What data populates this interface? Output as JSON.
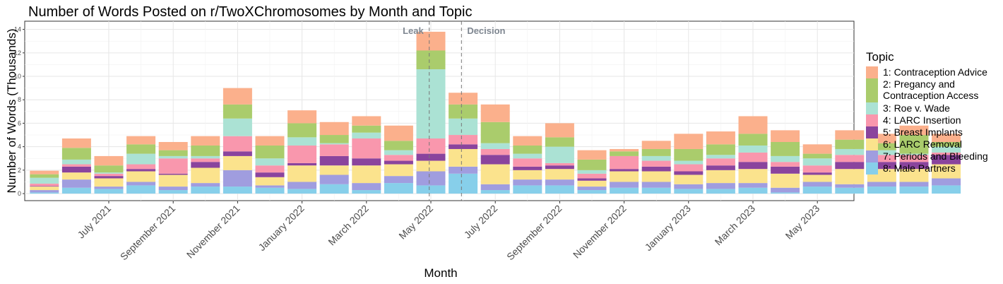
{
  "chart_data": {
    "type": "bar",
    "stacked": true,
    "title": "Number of Words Posted on r/TwoXChromosomes by Month and Topic",
    "xlabel": "Month",
    "ylabel": "Number of Words (Thousands)",
    "ylim": [
      -0.6,
      14.7
    ],
    "yticks": [
      0,
      2,
      4,
      6,
      8,
      10,
      12,
      14
    ],
    "grid": true,
    "legend_position": "right",
    "legend_title": "Topic",
    "categories": [
      "2021-05",
      "2021-06",
      "2021-07",
      "2021-08",
      "2021-09",
      "2021-10",
      "2021-11",
      "2021-12",
      "2022-01",
      "2022-02",
      "2022-03",
      "2022-04",
      "2022-05",
      "2022-06",
      "2022-07",
      "2022-08",
      "2022-09",
      "2022-10",
      "2022-11",
      "2022-12",
      "2023-01",
      "2023-02",
      "2023-03",
      "2023-04",
      "2023-05",
      "2023-06",
      "2023-07",
      "2023-08",
      "2023-09"
    ],
    "x_tick_labels": [
      {
        "index": 2,
        "label": "July 2021"
      },
      {
        "index": 4,
        "label": "September 2021"
      },
      {
        "index": 6,
        "label": "November 2021"
      },
      {
        "index": 8,
        "label": "January 2022"
      },
      {
        "index": 10,
        "label": "March 2022"
      },
      {
        "index": 12,
        "label": "May 2022"
      },
      {
        "index": 14,
        "label": "July 2022"
      },
      {
        "index": 16,
        "label": "September 2022"
      },
      {
        "index": 18,
        "label": "November 2022"
      },
      {
        "index": 20,
        "label": "January 2023"
      },
      {
        "index": 22,
        "label": "March 2023"
      },
      {
        "index": 24,
        "label": "May 2023"
      }
    ],
    "vlines": [
      {
        "x_position": 12.45,
        "label": "Leak"
      },
      {
        "x_position": 13.45,
        "label": "Decision"
      }
    ],
    "series": [
      {
        "name": "8: Male Partners",
        "color": "#87cfea",
        "values": [
          0.1,
          0.5,
          0.4,
          0.7,
          0.3,
          0.6,
          0.6,
          0.5,
          0.4,
          0.8,
          0.3,
          0.9,
          0.7,
          1.7,
          0.3,
          0.7,
          0.7,
          0.3,
          0.5,
          0.5,
          0.4,
          0.4,
          0.5,
          0.1,
          0.6,
          0.5,
          0.6,
          0.6,
          0.7
        ]
      },
      {
        "name": "7: Periods and Bleeding",
        "color": "#a09ddf",
        "values": [
          0.2,
          0.7,
          0.2,
          0.3,
          0.3,
          0.3,
          1.4,
          0.2,
          0.6,
          0.8,
          0.6,
          0.6,
          1.2,
          0.6,
          0.5,
          0.5,
          0.5,
          0.3,
          0.5,
          0.5,
          0.4,
          0.5,
          0.4,
          0.4,
          0.4,
          0.3,
          0.4,
          0.4,
          0.6
        ]
      },
      {
        "name": "6: LARC Removal",
        "color": "#fbe38d",
        "values": [
          0.3,
          0.6,
          0.7,
          0.9,
          1.0,
          1.3,
          1.2,
          0.7,
          1.4,
          0.8,
          1.5,
          1.0,
          0.9,
          1.5,
          1.7,
          0.8,
          0.9,
          0.5,
          0.9,
          0.9,
          0.8,
          1.1,
          1.2,
          1.2,
          0.6,
          1.3,
          1.1,
          1.1,
          1.2
        ]
      },
      {
        "name": "5: Breast Implants",
        "color": "#8a449d",
        "values": [
          0.05,
          0.5,
          0.2,
          0.2,
          0.1,
          0.5,
          0.4,
          0.4,
          0.2,
          0.8,
          0.6,
          0.3,
          0.6,
          0.4,
          0.8,
          0.3,
          0.3,
          0.2,
          0.2,
          0.4,
          0.3,
          0.4,
          0.6,
          0.6,
          0.2,
          0.6,
          0.6,
          0.6,
          0.8
        ]
      },
      {
        "name": "4: LARC Insertion",
        "color": "#f997ad",
        "values": [
          0.2,
          0.2,
          0.2,
          0.4,
          1.3,
          0.3,
          1.3,
          0.6,
          1.5,
          1.0,
          1.7,
          0.5,
          1.3,
          0.8,
          0.5,
          0.7,
          0.2,
          0.4,
          1.1,
          0.5,
          0.6,
          0.6,
          0.8,
          0.4,
          0.6,
          0.6,
          0.6,
          0.6,
          0.2
        ]
      },
      {
        "name": "3: Roe v. Wade",
        "color": "#abe2d4",
        "values": [
          0.5,
          0.4,
          0.1,
          0.9,
          0.2,
          0.2,
          1.5,
          0.6,
          0.7,
          0.1,
          0.5,
          0.4,
          5.9,
          1.4,
          0.5,
          0.4,
          1.4,
          0.3,
          0.0,
          0.4,
          0.3,
          0.3,
          0.6,
          0.5,
          0.6,
          0.5,
          0.4,
          0.1,
          0.5
        ]
      },
      {
        "name": "2: Pregancy and Contraception Access",
        "color": "#aacc6c",
        "values": [
          0.3,
          1.0,
          0.6,
          0.8,
          0.5,
          0.9,
          1.2,
          1.1,
          1.2,
          0.7,
          0.6,
          0.8,
          1.6,
          1.2,
          1.8,
          0.7,
          0.8,
          0.9,
          0.4,
          0.6,
          1.0,
          0.9,
          1.0,
          1.2,
          0.4,
          0.8,
          0.6,
          1.6,
          0.4
        ]
      },
      {
        "name": "1: Contraception Advice",
        "color": "#fbb08c",
        "values": [
          0.3,
          0.8,
          0.8,
          0.7,
          0.7,
          0.8,
          1.4,
          0.8,
          1.1,
          1.1,
          0.8,
          1.3,
          1.6,
          1.0,
          1.5,
          0.8,
          1.2,
          0.8,
          0.2,
          0.7,
          1.3,
          1.1,
          1.5,
          1.0,
          0.8,
          0.8,
          0.8,
          0.8,
          0.7
        ]
      }
    ],
    "legend_entries": [
      {
        "lines": [
          "1: Contraception Advice"
        ],
        "color": "#fbb08c"
      },
      {
        "lines": [
          "2: Pregancy and",
          "Contraception Access"
        ],
        "color": "#aacc6c"
      },
      {
        "lines": [
          "3: Roe v. Wade"
        ],
        "color": "#abe2d4"
      },
      {
        "lines": [
          "4: LARC Insertion"
        ],
        "color": "#f997ad"
      },
      {
        "lines": [
          "5: Breast Implants"
        ],
        "color": "#8a449d"
      },
      {
        "lines": [
          "6: LARC Removal"
        ],
        "color": "#fbe38d"
      },
      {
        "lines": [
          "7: Periods and Bleeding"
        ],
        "color": "#a09ddf"
      },
      {
        "lines": [
          "8: Male Partners"
        ],
        "color": "#87cfea"
      }
    ]
  }
}
